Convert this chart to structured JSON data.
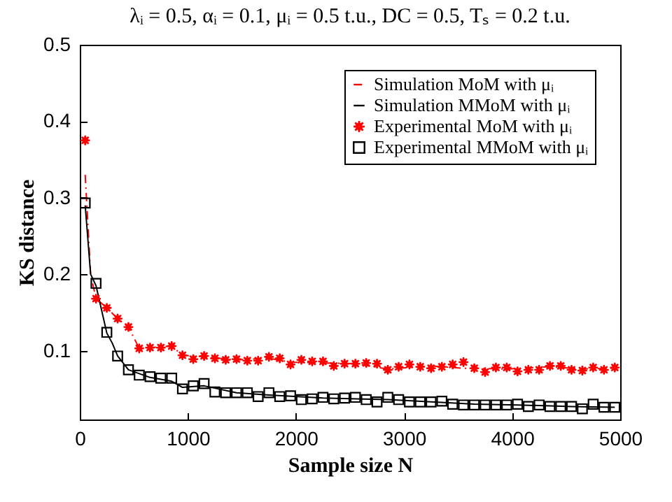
{
  "chart_data": {
    "type": "line",
    "title": "λᵢ = 0.5, αᵢ = 0.1, μᵢ = 0.5 t.u., DC = 0.5, Tₛ = 0.2 t.u.",
    "xlabel": "Sample size N",
    "ylabel": "KS distance",
    "xlim": [
      0,
      5000
    ],
    "xticks": [
      0,
      1000,
      2000,
      3000,
      4000,
      5000
    ],
    "ylim": [
      0.01,
      0.5
    ],
    "yticks": [
      0.1,
      0.2,
      0.3,
      0.4,
      0.5
    ],
    "grid": false,
    "legend": "top right",
    "series": [
      {
        "name": "Simulation MoM with μᵢ",
        "color": "#ff0000",
        "line_style": "dashdot",
        "marker": "none",
        "x": [
          50,
          100,
          150,
          250,
          350,
          450,
          550,
          650,
          850,
          950,
          1150,
          1450,
          1750,
          1950,
          2250,
          2550,
          2850,
          3250,
          3550,
          3950,
          4350,
          4650,
          4950
        ],
        "values": [
          0.33,
          0.2,
          0.168,
          0.156,
          0.142,
          0.131,
          0.103,
          0.104,
          0.106,
          0.094,
          0.092,
          0.088,
          0.09,
          0.085,
          0.084,
          0.083,
          0.076,
          0.08,
          0.077,
          0.076,
          0.079,
          0.076,
          0.077
        ]
      },
      {
        "name": "Simulation MMoM with μᵢ",
        "color": "#000000",
        "line_style": "solid",
        "marker": "none",
        "x": [
          50,
          100,
          150,
          250,
          300,
          350,
          450,
          650,
          850,
          950,
          1150,
          1450,
          1750,
          2250,
          2850,
          3250,
          3650,
          4050,
          4550,
          4950
        ],
        "values": [
          0.29,
          0.2,
          0.185,
          0.123,
          0.11,
          0.093,
          0.075,
          0.065,
          0.06,
          0.052,
          0.054,
          0.045,
          0.042,
          0.038,
          0.036,
          0.033,
          0.03,
          0.029,
          0.027,
          0.026
        ]
      },
      {
        "name": "Experimental MoM with μᵢ",
        "type": "scatter",
        "color": "#ff0000",
        "marker": "star",
        "x": [
          50,
          150,
          250,
          350,
          450,
          550,
          650,
          750,
          850,
          950,
          1050,
          1150,
          1250,
          1350,
          1450,
          1550,
          1650,
          1750,
          1850,
          1950,
          2050,
          2150,
          2250,
          2350,
          2450,
          2550,
          2650,
          2750,
          2850,
          2950,
          3050,
          3150,
          3250,
          3350,
          3450,
          3550,
          3650,
          3750,
          3850,
          3950,
          4050,
          4150,
          4250,
          4350,
          4450,
          4550,
          4650,
          4750,
          4850,
          4950
        ],
        "values": [
          0.375,
          0.168,
          0.156,
          0.142,
          0.131,
          0.103,
          0.104,
          0.104,
          0.106,
          0.094,
          0.089,
          0.093,
          0.09,
          0.088,
          0.089,
          0.087,
          0.087,
          0.092,
          0.09,
          0.082,
          0.088,
          0.086,
          0.086,
          0.08,
          0.083,
          0.083,
          0.084,
          0.083,
          0.075,
          0.079,
          0.082,
          0.079,
          0.077,
          0.079,
          0.082,
          0.085,
          0.077,
          0.072,
          0.078,
          0.078,
          0.073,
          0.075,
          0.075,
          0.08,
          0.08,
          0.075,
          0.074,
          0.078,
          0.075,
          0.078
        ]
      },
      {
        "name": "Experimental MMoM with μᵢ",
        "type": "scatter",
        "color": "#000000",
        "marker": "square",
        "x": [
          50,
          150,
          250,
          350,
          450,
          550,
          650,
          750,
          850,
          950,
          1050,
          1150,
          1250,
          1350,
          1450,
          1550,
          1650,
          1750,
          1850,
          1950,
          2050,
          2150,
          2250,
          2350,
          2450,
          2550,
          2650,
          2750,
          2850,
          2950,
          3050,
          3150,
          3250,
          3350,
          3450,
          3550,
          3650,
          3750,
          3850,
          3950,
          4050,
          4150,
          4250,
          4350,
          4450,
          4550,
          4650,
          4750,
          4850,
          4950
        ],
        "values": [
          0.293,
          0.188,
          0.124,
          0.093,
          0.075,
          0.068,
          0.066,
          0.064,
          0.064,
          0.05,
          0.054,
          0.057,
          0.046,
          0.045,
          0.045,
          0.045,
          0.04,
          0.045,
          0.04,
          0.041,
          0.036,
          0.037,
          0.039,
          0.037,
          0.038,
          0.039,
          0.036,
          0.033,
          0.039,
          0.036,
          0.033,
          0.033,
          0.033,
          0.034,
          0.03,
          0.029,
          0.029,
          0.029,
          0.029,
          0.029,
          0.03,
          0.027,
          0.029,
          0.027,
          0.027,
          0.027,
          0.024,
          0.03,
          0.026,
          0.026
        ]
      }
    ]
  }
}
